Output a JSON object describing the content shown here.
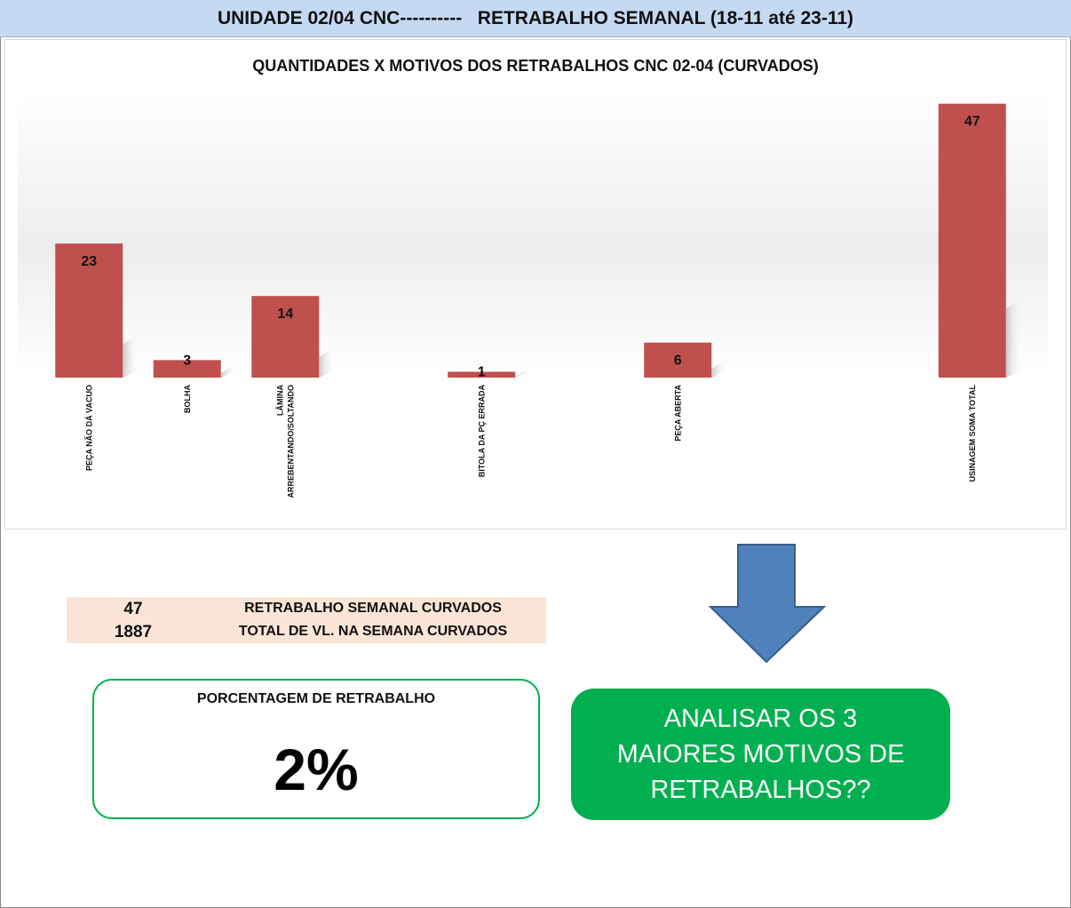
{
  "header": {
    "left": "UNIDADE 02/04 CNC----------",
    "right": "RETRABALHO SEMANAL (18-11 até 23-11)"
  },
  "chart_data": {
    "type": "bar",
    "title": "QUANTIDADES X MOTIVOS DOS RETRABALHOS CNC 02-04 (CURVADOS)",
    "categories": [
      "PEÇA NÃO DÁ VACUO",
      "BOLHA",
      "LÂMINA ARREBENTANDO/SOLTANDO",
      "",
      "BITOLA DA PÇ ERRADA",
      "",
      "PEÇA ABERTA",
      "",
      "",
      "USINAGEM SOMA TOTAL"
    ],
    "category_lines": [
      [
        "PEÇA NÃO DÁ VACUO"
      ],
      [
        "BOLHA"
      ],
      [
        "LÂMINA",
        "ARREBENTANDO/SOLTANDO"
      ],
      [],
      [
        "BITOLA DA PÇ ERRADA"
      ],
      [],
      [
        "PEÇA ABERTA"
      ],
      [],
      [],
      [
        "USINAGEM SOMA TOTAL"
      ]
    ],
    "values": [
      23,
      3,
      14,
      null,
      1,
      null,
      6,
      null,
      null,
      47
    ],
    "ylim": [
      0,
      50
    ],
    "grid": false,
    "legend": "none",
    "colors": {
      "bar": "#c0504d",
      "label": "#111111"
    }
  },
  "summary": {
    "rows": [
      {
        "value": "47",
        "label": "RETRABALHO SEMANAL CURVADOS"
      },
      {
        "value": "1887",
        "label": "TOTAL DE VL. NA SEMANA CURVADOS"
      }
    ]
  },
  "percentage": {
    "label": "PORCENTAGEM DE RETRABALHO",
    "value": "2%"
  },
  "callout": {
    "text": "ANALISAR OS 3 MAIORES MOTIVOS DE RETRABALHOS??"
  },
  "colors": {
    "header_bg": "#c5d9f1",
    "summary_bg": "#fbe5d6",
    "green": "#00b050",
    "arrow": "#4f81bd"
  }
}
